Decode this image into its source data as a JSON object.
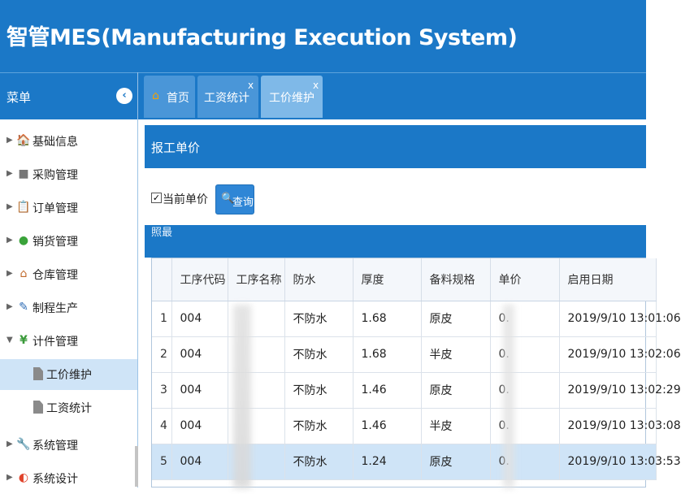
{
  "app": {
    "title": "智管MES(Manufacturing Execution System)"
  },
  "sidebar": {
    "title": "菜单",
    "collapse_glyph": "‹",
    "items": [
      {
        "label": "基础信息",
        "icon": "house-icon",
        "glyph": "🏠"
      },
      {
        "label": "采购管理",
        "icon": "folder-icon",
        "glyph": "■"
      },
      {
        "label": "订单管理",
        "icon": "order-icon",
        "glyph": "📋"
      },
      {
        "label": "销货管理",
        "icon": "globe-icon",
        "glyph": "●"
      },
      {
        "label": "仓库管理",
        "icon": "warehouse-icon",
        "glyph": "⌂"
      },
      {
        "label": "制程生产",
        "icon": "wrench-icon",
        "glyph": "✎"
      },
      {
        "label": "计件管理",
        "icon": "yen-icon",
        "glyph": "¥",
        "expanded": true
      },
      {
        "label": "工价维护",
        "icon": "file-icon",
        "sub": true,
        "active": true
      },
      {
        "label": "工资统计",
        "icon": "file-icon",
        "sub": true
      },
      {
        "label": "系统管理",
        "icon": "tools-icon",
        "glyph": "🔧"
      },
      {
        "label": "系统设计",
        "icon": "rainbow-icon",
        "glyph": "◐"
      }
    ]
  },
  "tabs": [
    {
      "label": "首页"
    },
    {
      "label": "工资统计",
      "close": "x"
    },
    {
      "label": "工价维护",
      "close": "x",
      "active": true
    }
  ],
  "panel": {
    "title": "报工单价",
    "checkbox_label": "当前单价",
    "checkbox_checked": "✓",
    "query_label": "查询",
    "grid_caption": "照最"
  },
  "table": {
    "columns": [
      "",
      "工序代码",
      "工序名称",
      "防水",
      "厚度",
      "备料规格",
      "单价",
      "启用日期"
    ],
    "rows": [
      [
        "1",
        "004",
        "",
        "不防水",
        "1.68",
        "原皮",
        "0.",
        "2019/9/10 13:01:06"
      ],
      [
        "2",
        "004",
        "",
        "不防水",
        "1.68",
        "半皮",
        "0.",
        "2019/9/10 13:02:06"
      ],
      [
        "3",
        "004",
        "",
        "不防水",
        "1.46",
        "原皮",
        "0.",
        "2019/9/10 13:02:29"
      ],
      [
        "4",
        "004",
        "",
        "不防水",
        "1.46",
        "半皮",
        "0.",
        "2019/9/10 13:03:08"
      ],
      [
        "5",
        "004",
        "",
        "不防水",
        "1.24",
        "原皮",
        "0.",
        "2019/9/10 13:03:53"
      ]
    ],
    "selected_row": 5
  },
  "colors": {
    "brand": "#1b78c7",
    "selected": "#cfe4f7"
  }
}
